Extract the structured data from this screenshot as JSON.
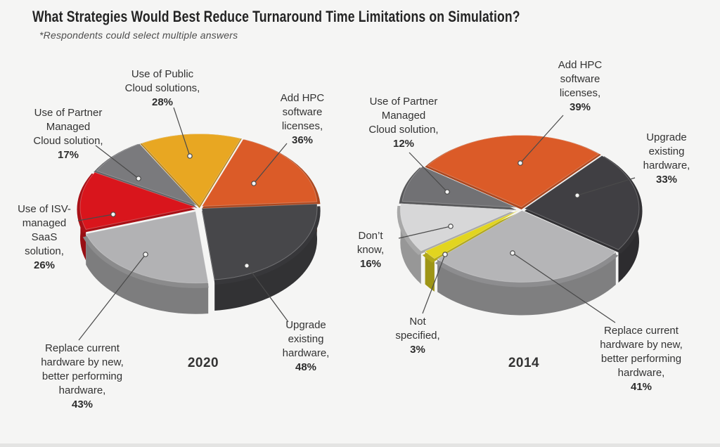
{
  "page": {
    "title": "What Strategies Would Best Reduce Turnaround Time Limitations on Simulation?",
    "subtitle": "*Respondents could select multiple answers"
  },
  "chart_data": [
    {
      "type": "pie",
      "style": "3d-exploded",
      "title": "2020",
      "unit": "%",
      "slices": [
        {
          "label": "Use of Public Cloud solutions",
          "label_lines": [
            "Use of Public",
            "Cloud solutions,"
          ],
          "pct_label": "28%",
          "value": 28,
          "color": "#E8A722"
        },
        {
          "label": "Add HPC software licenses",
          "label_lines": [
            "Add HPC",
            "software",
            "licenses,"
          ],
          "pct_label": "36%",
          "value": 36,
          "color": "#DB5B28"
        },
        {
          "label": "Upgrade existing hardware",
          "label_lines": [
            "Upgrade",
            "existing",
            "hardware,"
          ],
          "pct_label": "48%",
          "value": 48,
          "color": "#47474A"
        },
        {
          "label": "Replace current hardware by new, better performing hardware",
          "label_lines": [
            "Replace current",
            "hardware by new,",
            "better performing",
            "hardware,"
          ],
          "pct_label": "43%",
          "value": 43,
          "color": "#B2B2B4"
        },
        {
          "label": "Use of ISV-managed SaaS solution",
          "label_lines": [
            "Use of ISV-",
            "managed",
            "SaaS",
            "solution,"
          ],
          "pct_label": "26%",
          "value": 26,
          "color": "#D9151C"
        },
        {
          "label": "Use of Partner Managed Cloud solution",
          "label_lines": [
            "Use of Partner",
            "Managed",
            "Cloud solution,"
          ],
          "pct_label": "17%",
          "value": 17,
          "color": "#7A7A7D"
        }
      ]
    },
    {
      "type": "pie",
      "style": "3d-exploded",
      "title": "2014",
      "unit": "%",
      "slices": [
        {
          "label": "Add HPC software licenses",
          "label_lines": [
            "Add HPC",
            "software",
            "licenses,"
          ],
          "pct_label": "39%",
          "value": 39,
          "color": "#DB5B28"
        },
        {
          "label": "Upgrade existing hardware",
          "label_lines": [
            "Upgrade",
            "existing",
            "hardware,"
          ],
          "pct_label": "33%",
          "value": 33,
          "color": "#403F43"
        },
        {
          "label": "Replace current hardware by new, better performing hardware",
          "label_lines": [
            "Replace current",
            "hardware by new,",
            "better performing",
            "hardware,"
          ],
          "pct_label": "41%",
          "value": 41,
          "color": "#B5B5B7"
        },
        {
          "label": "Not specified",
          "label_lines": [
            "Not",
            "specified,"
          ],
          "pct_label": "3%",
          "value": 3,
          "color": "#E2D51F"
        },
        {
          "label": "Don’t know",
          "label_lines": [
            "Don’t",
            "know,"
          ],
          "pct_label": "16%",
          "value": 16,
          "color": "#D7D7D8"
        },
        {
          "label": "Use of Partner Managed Cloud solution",
          "label_lines": [
            "Use of Partner",
            "Managed",
            "Cloud solution,"
          ],
          "pct_label": "12%",
          "value": 12,
          "color": "#717174"
        }
      ]
    }
  ]
}
